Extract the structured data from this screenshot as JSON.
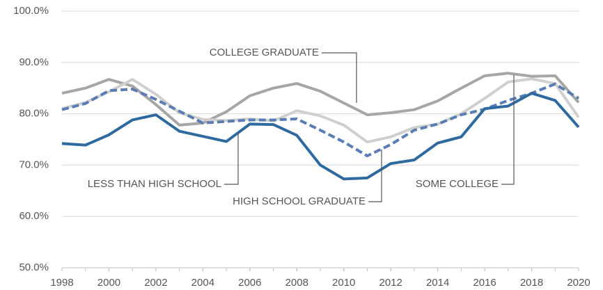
{
  "chart_data": {
    "type": "line",
    "x": [
      1998,
      1999,
      2000,
      2001,
      2002,
      2003,
      2004,
      2005,
      2006,
      2007,
      2008,
      2009,
      2010,
      2011,
      2012,
      2013,
      2014,
      2015,
      2016,
      2017,
      2018,
      2019,
      2020
    ],
    "series": [
      {
        "name": "COLLEGE GRADUATE",
        "color": "#a6a6a6",
        "dash": false,
        "values": [
          84.0,
          85.0,
          86.7,
          85.4,
          81.8,
          77.8,
          78.2,
          80.4,
          83.5,
          85.0,
          85.9,
          84.4,
          82.1,
          79.8,
          80.2,
          80.8,
          82.5,
          85.0,
          87.4,
          87.9,
          87.3,
          87.4,
          82.2
        ]
      },
      {
        "name": "SOME COLLEGE",
        "color": "#cfcfcf",
        "dash": false,
        "values": [
          81.0,
          82.2,
          84.3,
          86.7,
          83.8,
          80.2,
          78.9,
          78.7,
          79.0,
          78.6,
          80.6,
          79.6,
          77.8,
          74.5,
          75.5,
          77.3,
          78.0,
          80.0,
          83.0,
          86.2,
          86.8,
          85.9,
          79.3
        ]
      },
      {
        "name": "HIGH SCHOOL GRADUATE",
        "color": "#5b7db5",
        "dash": true,
        "values": [
          80.8,
          82.0,
          84.5,
          84.8,
          82.8,
          80.5,
          78.2,
          78.5,
          78.8,
          78.8,
          79.0,
          76.8,
          74.5,
          71.8,
          74.0,
          76.8,
          78.0,
          79.8,
          80.9,
          82.6,
          84.0,
          85.8,
          83.0
        ]
      },
      {
        "name": "LESS THAN HIGH SCHOOL",
        "color": "#2e6aa0",
        "dash": false,
        "values": [
          74.2,
          73.9,
          75.9,
          78.8,
          79.8,
          76.6,
          75.6,
          74.6,
          78.0,
          77.9,
          75.8,
          70.0,
          67.3,
          67.5,
          70.3,
          71.0,
          74.3,
          75.5,
          81.0,
          81.5,
          84.0,
          82.6,
          77.4
        ]
      }
    ],
    "xlim": [
      1998,
      2020
    ],
    "xticks": [
      1998,
      2000,
      2002,
      2004,
      2006,
      2008,
      2010,
      2012,
      2014,
      2016,
      2018,
      2020
    ],
    "ylim": [
      50,
      100
    ],
    "yticks": [
      {
        "value": 50,
        "label": "50.0%"
      },
      {
        "value": 60,
        "label": "60.0%"
      },
      {
        "value": 70,
        "label": "70.0%"
      },
      {
        "value": 80,
        "label": "80.0%"
      },
      {
        "value": 90,
        "label": "90.0%"
      },
      {
        "value": 100,
        "label": "100.0%"
      }
    ],
    "grid": true
  }
}
